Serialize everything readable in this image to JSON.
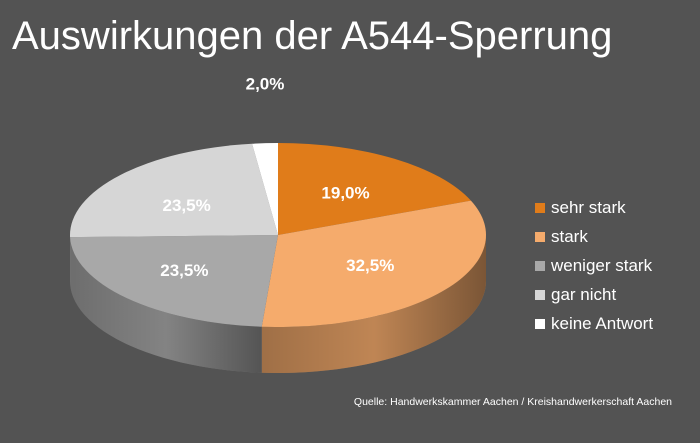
{
  "chart_data": {
    "type": "pie",
    "title": "Auswirkungen der A544-Sperrung",
    "categories": [
      "sehr stark",
      "stark",
      "weniger stark",
      "gar nicht",
      "keine Antwort"
    ],
    "values": [
      19.0,
      32.5,
      23.5,
      23.5,
      2.0
    ],
    "value_labels": [
      "19,0%",
      "32,5%",
      "23,5%",
      "23,5%",
      "2,0%"
    ],
    "colors": [
      "#E07C1A",
      "#F5AB6C",
      "#A8A8A8",
      "#D6D6D6",
      "#FFFFFF"
    ],
    "legend_position": "right",
    "three_d": true
  },
  "source": "Quelle: Handwerkskammer Aachen / Kreishandwerkerschaft Aachen"
}
